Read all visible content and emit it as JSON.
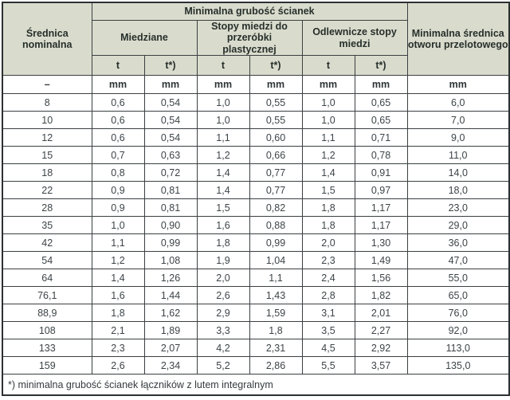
{
  "table": {
    "title_group": "Minimalna grubość ścianek",
    "col_diameter_header": "Średnica nominalna",
    "col_last_header": "Minimalna średnica otworu przelotowego",
    "subgroups": [
      "Miedziane",
      "Stopy miedzi do przeróbki plastycznej",
      "Odlewnicze stopy miedzi"
    ],
    "t_labels": [
      "t",
      "t*)",
      "t",
      "t*)",
      "t",
      "t*)"
    ],
    "units": [
      "–",
      "mm",
      "mm",
      "mm",
      "mm",
      "mm",
      "mm",
      "mm"
    ],
    "rows": [
      [
        "8",
        "0,6",
        "0,54",
        "1,0",
        "0,55",
        "1,0",
        "0,65",
        "6,0"
      ],
      [
        "10",
        "0,6",
        "0,54",
        "1,0",
        "0,55",
        "1,0",
        "0,65",
        "7,0"
      ],
      [
        "12",
        "0,6",
        "0,54",
        "1,1",
        "0,60",
        "1,1",
        "0,71",
        "9,0"
      ],
      [
        "15",
        "0,7",
        "0,63",
        "1,2",
        "0,66",
        "1,2",
        "0,78",
        "11,0"
      ],
      [
        "18",
        "0,8",
        "0,72",
        "1,4",
        "0,77",
        "1,4",
        "0,91",
        "14,0"
      ],
      [
        "22",
        "0,9",
        "0,81",
        "1,4",
        "0,77",
        "1,5",
        "0,97",
        "18,0"
      ],
      [
        "28",
        "0,9",
        "0,81",
        "1,5",
        "0,82",
        "1,8",
        "1,17",
        "23,0"
      ],
      [
        "35",
        "1,0",
        "0,90",
        "1,6",
        "0,88",
        "1,8",
        "1,17",
        "29,0"
      ],
      [
        "42",
        "1,1",
        "0,99",
        "1,8",
        "0,99",
        "2,0",
        "1,30",
        "36,0"
      ],
      [
        "54",
        "1,2",
        "1,08",
        "1,9",
        "1,04",
        "2,3",
        "1,49",
        "47,0"
      ],
      [
        "64",
        "1,4",
        "1,26",
        "2,0",
        "1,1",
        "2,4",
        "1,56",
        "55,0"
      ],
      [
        "76,1",
        "1,6",
        "1,44",
        "2,6",
        "1,43",
        "2,8",
        "1,82",
        "65,0"
      ],
      [
        "88,9",
        "1,8",
        "1,62",
        "2,9",
        "1,59",
        "3,1",
        "2,01",
        "76,0"
      ],
      [
        "108",
        "2,1",
        "1,89",
        "3,3",
        "1,8",
        "3,5",
        "2,27",
        "92,0"
      ],
      [
        "133",
        "2,3",
        "2,07",
        "4,2",
        "2,31",
        "4,5",
        "2,92",
        "113,0"
      ],
      [
        "159",
        "2,6",
        "2,34",
        "5,2",
        "2,86",
        "5,5",
        "3,57",
        "135,0"
      ]
    ],
    "footnote": "*) minimalna grubość ścianek łączników z lutem integralnym"
  },
  "colors": {
    "header_bg": "#d9dccd",
    "border": "#3a3f41",
    "outer_border": "#2c3032",
    "header_text": "#272f2b",
    "data_text": "#3d4447"
  }
}
